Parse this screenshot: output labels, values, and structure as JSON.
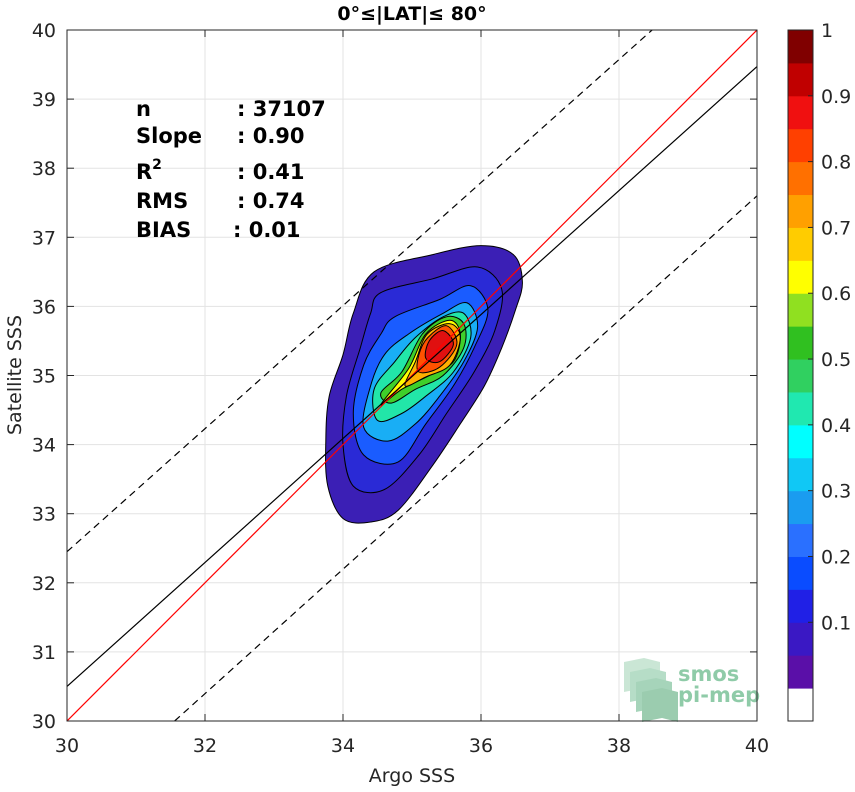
{
  "chart_data": {
    "type": "contour",
    "title": "0°≤|LAT|≤ 80°",
    "xlabel": "Argo SSS",
    "ylabel": "Satellite SSS",
    "xlim": [
      30,
      40
    ],
    "ylim": [
      30,
      40
    ],
    "xticks": [
      "30",
      "32",
      "34",
      "36",
      "38",
      "40"
    ],
    "yticks": [
      "30",
      "31",
      "32",
      "33",
      "34",
      "35",
      "36",
      "37",
      "38",
      "39",
      "40"
    ],
    "grid": true,
    "stats": [
      {
        "label": "n",
        "value": ": 37107"
      },
      {
        "label": "Slope",
        "value": ": 0.90"
      },
      {
        "label": "R2",
        "value": ": 0.41"
      },
      {
        "label": "RMS",
        "value": ": 0.74"
      },
      {
        "label": "BIAS",
        "value": ": 0.01"
      }
    ],
    "lines": [
      {
        "role": "one-to-one",
        "color": "#ff0000",
        "style": "solid",
        "points": [
          [
            30,
            30
          ],
          [
            40,
            40
          ]
        ]
      },
      {
        "role": "regression",
        "color": "#000000",
        "style": "solid",
        "points": [
          [
            30,
            30.5
          ],
          [
            40,
            39.47
          ]
        ]
      },
      {
        "role": "upper-bound",
        "color": "#000000",
        "style": "dashed",
        "points": [
          [
            30,
            32.45
          ],
          [
            38.48,
            40
          ]
        ]
      },
      {
        "role": "lower-bound",
        "color": "#000000",
        "style": "dashed",
        "points": [
          [
            31.56,
            30
          ],
          [
            40,
            37.6
          ]
        ]
      }
    ],
    "contours": [
      {
        "level": 0.05,
        "color": "#3b1fb5",
        "points": [
          [
            34.45,
            36.5
          ],
          [
            35.3,
            36.75
          ],
          [
            36.0,
            36.88
          ],
          [
            36.47,
            36.75
          ],
          [
            36.6,
            36.35
          ],
          [
            36.5,
            35.95
          ],
          [
            36.3,
            35.4
          ],
          [
            36.05,
            34.85
          ],
          [
            35.7,
            34.3
          ],
          [
            35.3,
            33.7
          ],
          [
            34.8,
            33.05
          ],
          [
            34.4,
            32.88
          ],
          [
            34.0,
            32.93
          ],
          [
            33.78,
            33.4
          ],
          [
            33.75,
            34.05
          ],
          [
            33.8,
            34.7
          ],
          [
            34.0,
            35.3
          ],
          [
            34.15,
            35.9
          ]
        ]
      },
      {
        "level": 0.1,
        "color": "#2a2ad6",
        "points": [
          [
            34.55,
            36.2
          ],
          [
            35.3,
            36.4
          ],
          [
            35.95,
            36.57
          ],
          [
            36.3,
            36.25
          ],
          [
            36.2,
            35.65
          ],
          [
            35.9,
            35.05
          ],
          [
            35.5,
            34.45
          ],
          [
            35.1,
            33.85
          ],
          [
            34.6,
            33.35
          ],
          [
            34.15,
            33.4
          ],
          [
            34.0,
            34.0
          ],
          [
            34.05,
            34.7
          ],
          [
            34.25,
            35.4
          ],
          [
            34.4,
            35.9
          ]
        ]
      },
      {
        "level": 0.2,
        "color": "#1a5cff",
        "points": [
          [
            34.75,
            35.85
          ],
          [
            35.4,
            36.1
          ],
          [
            35.85,
            36.3
          ],
          [
            36.1,
            35.95
          ],
          [
            35.9,
            35.4
          ],
          [
            35.6,
            34.85
          ],
          [
            35.2,
            34.3
          ],
          [
            34.8,
            33.75
          ],
          [
            34.3,
            33.85
          ],
          [
            34.15,
            34.45
          ],
          [
            34.3,
            35.15
          ],
          [
            34.55,
            35.6
          ]
        ]
      },
      {
        "level": 0.3,
        "color": "#19aef5",
        "points": [
          [
            34.95,
            35.6
          ],
          [
            35.45,
            35.9
          ],
          [
            35.8,
            36.05
          ],
          [
            35.95,
            35.7
          ],
          [
            35.75,
            35.2
          ],
          [
            35.4,
            34.7
          ],
          [
            35.05,
            34.3
          ],
          [
            34.65,
            34.05
          ],
          [
            34.3,
            34.25
          ],
          [
            34.4,
            34.85
          ],
          [
            34.6,
            35.3
          ]
        ]
      },
      {
        "level": 0.4,
        "color": "#22e6a8",
        "points": [
          [
            35.05,
            35.55
          ],
          [
            35.45,
            35.85
          ],
          [
            35.75,
            35.9
          ],
          [
            35.85,
            35.55
          ],
          [
            35.6,
            35.05
          ],
          [
            35.2,
            34.7
          ],
          [
            34.85,
            34.45
          ],
          [
            34.5,
            34.35
          ],
          [
            34.45,
            34.8
          ],
          [
            34.75,
            35.2
          ]
        ]
      },
      {
        "level": 0.5,
        "color": "#3fcf2a",
        "points": [
          [
            35.15,
            35.6
          ],
          [
            35.5,
            35.85
          ],
          [
            35.75,
            35.75
          ],
          [
            35.75,
            35.4
          ],
          [
            35.45,
            35.0
          ],
          [
            35.05,
            34.8
          ],
          [
            34.7,
            34.6
          ],
          [
            34.55,
            34.75
          ],
          [
            34.85,
            35.05
          ]
        ]
      },
      {
        "level": 0.6,
        "color": "#ffff00",
        "points": [
          [
            35.2,
            35.6
          ],
          [
            35.55,
            35.8
          ],
          [
            35.7,
            35.6
          ],
          [
            35.6,
            35.2
          ],
          [
            35.25,
            35.0
          ],
          [
            34.85,
            34.8
          ],
          [
            34.55,
            34.58
          ],
          [
            34.95,
            35.1
          ]
        ]
      },
      {
        "level": 0.7,
        "color": "#ffb000",
        "points": [
          [
            35.22,
            35.6
          ],
          [
            35.55,
            35.75
          ],
          [
            35.7,
            35.55
          ],
          [
            35.55,
            35.15
          ],
          [
            35.2,
            34.98
          ],
          [
            34.9,
            34.85
          ],
          [
            35.05,
            35.2
          ]
        ]
      },
      {
        "level": 0.8,
        "color": "#ff5200",
        "points": [
          [
            35.23,
            35.55
          ],
          [
            35.5,
            35.72
          ],
          [
            35.65,
            35.45
          ],
          [
            35.4,
            35.12
          ],
          [
            35.1,
            35.05
          ],
          [
            35.1,
            35.3
          ]
        ]
      },
      {
        "level": 0.9,
        "color": "#e01010",
        "points": [
          [
            35.25,
            35.5
          ],
          [
            35.45,
            35.65
          ],
          [
            35.6,
            35.45
          ],
          [
            35.4,
            35.2
          ],
          [
            35.2,
            35.25
          ]
        ]
      }
    ],
    "colorbar": {
      "ticks": [
        "0.1",
        "0.2",
        "0.3",
        "0.4",
        "0.5",
        "0.6",
        "0.7",
        "0.8",
        "0.9",
        "1"
      ],
      "tick_values": [
        0.1,
        0.2,
        0.3,
        0.4,
        0.5,
        0.6,
        0.7,
        0.8,
        0.9,
        1.0
      ],
      "bands": [
        "#ffffff",
        "#5a0fa8",
        "#3a18c4",
        "#2020e6",
        "#0a4cff",
        "#2a70ff",
        "#1a9cf0",
        "#10c8f5",
        "#00ffff",
        "#20e8b0",
        "#30d060",
        "#30c020",
        "#90e020",
        "#ffff00",
        "#ffcc00",
        "#ffa000",
        "#ff7000",
        "#ff4000",
        "#f01010",
        "#c00000",
        "#800000"
      ]
    },
    "watermark": {
      "line1": "smos",
      "line2": "pi-mep"
    }
  }
}
